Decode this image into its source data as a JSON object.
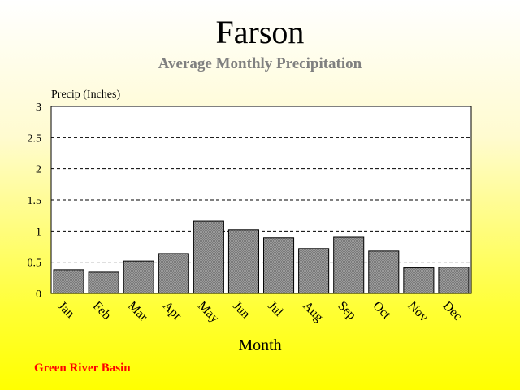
{
  "chart_data": {
    "type": "bar",
    "title": "Farson",
    "subtitle": "Average Monthly Precipitation",
    "ylabel": "Precip (Inches)",
    "xlabel": "Month",
    "categories": [
      "Jan",
      "Feb",
      "Mar",
      "Apr",
      "May",
      "Jun",
      "Jul",
      "Aug",
      "Sep",
      "Oct",
      "Nov",
      "Dec"
    ],
    "values": [
      0.38,
      0.34,
      0.52,
      0.64,
      1.16,
      1.02,
      0.89,
      0.72,
      0.9,
      0.68,
      0.41,
      0.42
    ],
    "ylim": [
      0,
      3
    ],
    "yticks": [
      "0",
      "0.5",
      "1",
      "1.5",
      "2",
      "2.5",
      "3"
    ],
    "grid": "dashed horizontal",
    "colors": {
      "bar": "#808080",
      "plot_bg": "#ffffff",
      "footer": "#ff0000",
      "subtitle": "#808080"
    }
  },
  "footer_note": "Green River Basin"
}
